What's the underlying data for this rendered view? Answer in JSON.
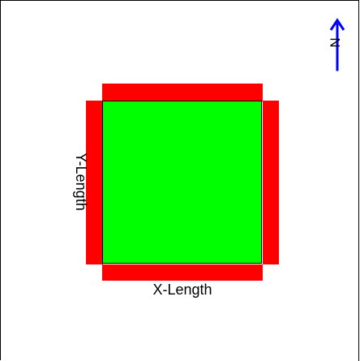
{
  "diagram": {
    "labels": {
      "x_length": "X-Length",
      "y_length": "Y-Length",
      "north": "N"
    },
    "colors": {
      "background": "#ffffff",
      "fill": "#00ff00",
      "edge": "#ff0000",
      "outline": "#000000",
      "north_arrow": "#0000ff"
    },
    "icons": {
      "north_arrow": "north-arrow-icon"
    }
  }
}
